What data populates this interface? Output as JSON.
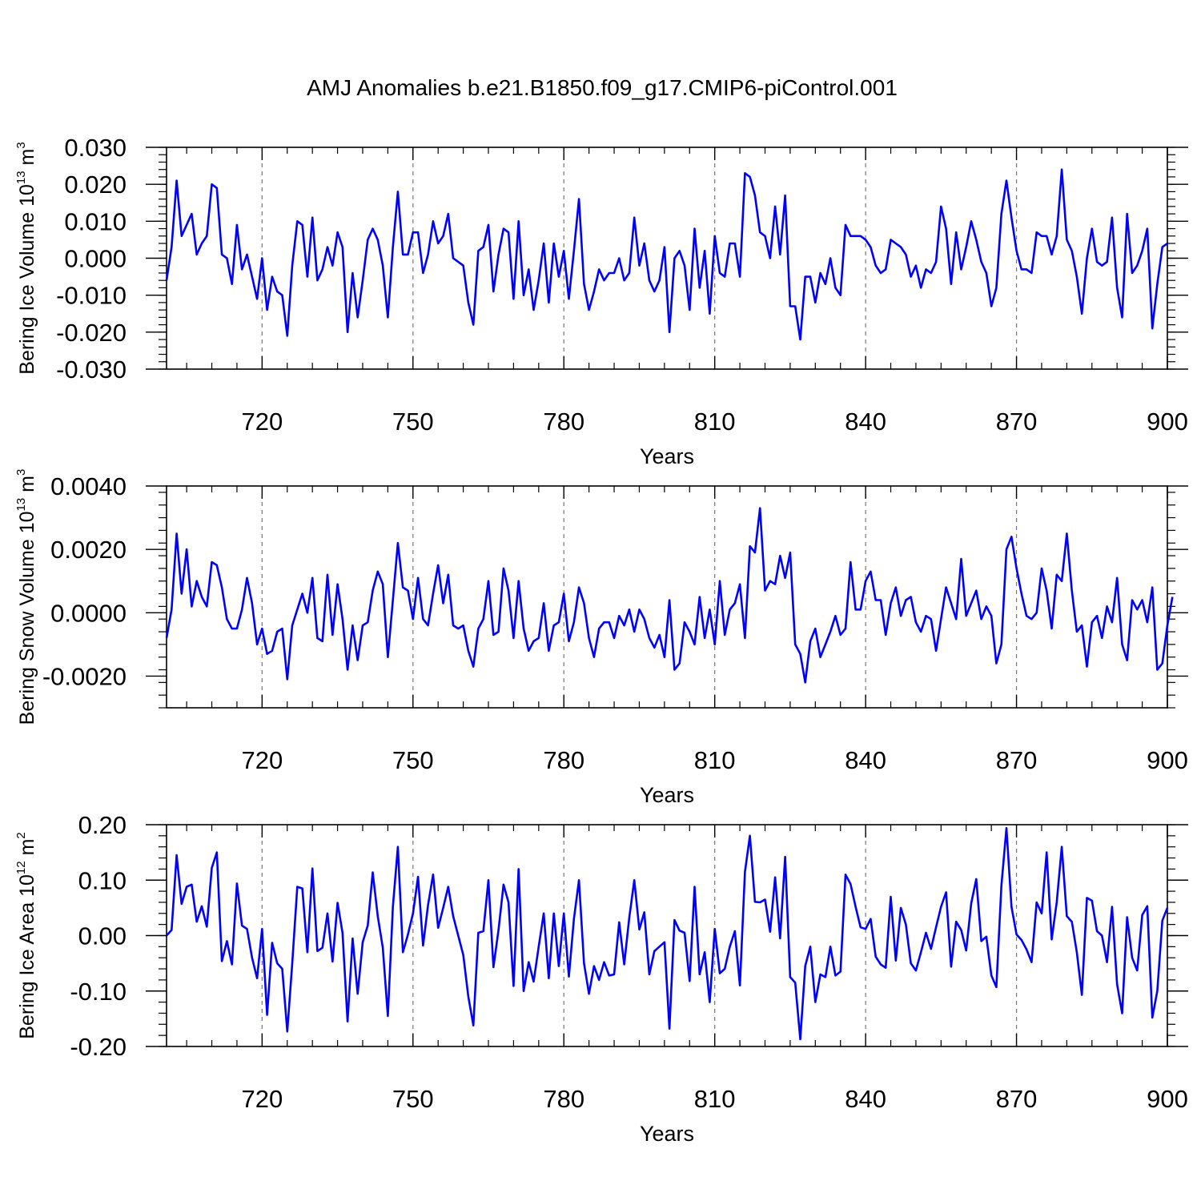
{
  "title": "AMJ Anomalies b.e21.B1850.f09_g17.CMIP6-piControl.001",
  "colors": {
    "line": "#0000ff",
    "axis": "#000000",
    "grid": "#777777"
  },
  "chart_data": [
    {
      "type": "line",
      "name": "ice-volume",
      "title": "AMJ Anomalies b.e21.B1850.f09_g17.CMIP6-piControl.001",
      "xlabel": "Years",
      "ylabel": {
        "text": "Bering Ice Volume 10",
        "sup": "13",
        "unit": " m",
        "unit_sup": "3"
      },
      "xlim": [
        701,
        900
      ],
      "ylim": [
        -0.03,
        0.03
      ],
      "xticks": [
        720,
        750,
        780,
        810,
        840,
        870,
        900
      ],
      "xticklabels": [
        "720",
        "750",
        "780",
        "810",
        "840",
        "870",
        "900"
      ],
      "yticks": [
        -0.03,
        -0.02,
        -0.01,
        0,
        0.01,
        0.02,
        0.03
      ],
      "yticklabels": [
        "-0.030",
        "-0.020",
        "-0.010",
        "0.000",
        "0.010",
        "0.020",
        "0.030"
      ],
      "grid_x": true,
      "x_start": 701,
      "values": [
        -0.006,
        0.003,
        0.021,
        0.006,
        0.009,
        0.012,
        0.001,
        0.004,
        0.006,
        0.02,
        0.019,
        0.001,
        0.0,
        -0.007,
        0.009,
        -0.003,
        0.001,
        -0.005,
        -0.011,
        0.0,
        -0.014,
        -0.005,
        -0.009,
        -0.01,
        -0.021,
        -0.002,
        0.01,
        0.009,
        -0.005,
        0.011,
        -0.006,
        -0.003,
        0.003,
        -0.002,
        0.007,
        0.003,
        -0.02,
        -0.004,
        -0.016,
        -0.006,
        0.005,
        0.008,
        0.005,
        -0.002,
        -0.016,
        0.003,
        0.018,
        0.001,
        0.001,
        0.007,
        0.007,
        -0.004,
        0.001,
        0.01,
        0.004,
        0.006,
        0.012,
        0.0,
        -0.001,
        -0.002,
        -0.012,
        -0.018,
        0.002,
        0.003,
        0.009,
        -0.009,
        0.001,
        0.008,
        0.007,
        -0.011,
        0.01,
        -0.01,
        -0.003,
        -0.014,
        -0.006,
        0.004,
        -0.012,
        0.004,
        -0.005,
        0.002,
        -0.011,
        0.002,
        0.016,
        -0.007,
        -0.014,
        -0.009,
        -0.003,
        -0.006,
        -0.004,
        -0.004,
        0.0,
        -0.006,
        -0.004,
        0.011,
        -0.002,
        0.004,
        -0.006,
        -0.009,
        -0.006,
        0.003,
        -0.02,
        0.0,
        0.002,
        -0.002,
        -0.014,
        0.008,
        -0.008,
        0.002,
        -0.015,
        0.006,
        -0.004,
        -0.005,
        0.004,
        0.004,
        -0.005,
        0.023,
        0.022,
        0.017,
        0.007,
        0.006,
        0.0,
        0.014,
        0.001,
        0.017,
        -0.013,
        -0.013,
        -0.022,
        -0.005,
        -0.005,
        -0.012,
        -0.004,
        -0.007,
        0.0,
        -0.008,
        -0.01,
        0.009,
        0.006,
        0.006,
        0.006,
        0.005,
        0.003,
        -0.002,
        -0.004,
        -0.003,
        0.005,
        0.004,
        0.003,
        0.001,
        -0.005,
        -0.002,
        -0.008,
        -0.003,
        -0.004,
        -0.001,
        0.014,
        0.008,
        -0.007,
        0.007,
        -0.003,
        0.003,
        0.01,
        0.005,
        -0.001,
        -0.004,
        -0.013,
        -0.008,
        0.012,
        0.021,
        0.011,
        0.002,
        -0.003,
        -0.003,
        -0.004,
        0.007,
        0.006,
        0.006,
        0.001,
        0.006,
        0.024,
        0.005,
        0.002,
        -0.005,
        -0.015,
        0.0,
        0.008,
        -0.001,
        -0.002,
        -0.001,
        0.011,
        -0.008,
        -0.016,
        0.012,
        -0.004,
        -0.002,
        0.002,
        0.008,
        -0.019,
        -0.007,
        0.003,
        0.004
      ]
    },
    {
      "type": "line",
      "name": "snow-volume",
      "xlabel": "Years",
      "ylabel": {
        "text": "Bering Snow Volume 10",
        "sup": "13",
        "unit": " m",
        "unit_sup": "3"
      },
      "xlim": [
        701,
        900
      ],
      "ylim": [
        -0.003,
        0.004
      ],
      "xticks": [
        720,
        750,
        780,
        810,
        840,
        870,
        900
      ],
      "xticklabels": [
        "720",
        "750",
        "780",
        "810",
        "840",
        "870",
        "900"
      ],
      "yticks": [
        -0.002,
        0,
        0.002,
        0.004
      ],
      "yticklabels": [
        "-0.0020",
        "0.0000",
        "0.0020",
        "0.0040"
      ],
      "grid_x": true,
      "x_start": 701,
      "values": [
        -0.0008,
        0.0001,
        0.0025,
        0.0006,
        0.002,
        0.0002,
        0.001,
        0.0005,
        0.0002,
        0.0016,
        0.0015,
        0.0008,
        -0.0002,
        -0.0005,
        -0.0005,
        0.0001,
        0.0011,
        0.0003,
        -0.001,
        -0.0005,
        -0.0013,
        -0.0012,
        -0.0006,
        -0.0005,
        -0.0021,
        -0.0004,
        0.0001,
        0.0006,
        0.0,
        0.0011,
        -0.0008,
        -0.0009,
        0.0012,
        -0.0007,
        0.0009,
        -0.0002,
        -0.0018,
        -0.0004,
        -0.0015,
        -0.0004,
        -0.0003,
        0.0007,
        0.0013,
        0.0009,
        -0.0014,
        0.0004,
        0.0022,
        0.0008,
        0.0007,
        -0.0002,
        0.0011,
        -0.0002,
        -0.0004,
        0.0006,
        0.0015,
        0.0003,
        0.0012,
        -0.0004,
        -0.0005,
        -0.0004,
        -0.0012,
        -0.0017,
        -0.0005,
        -0.0002,
        0.001,
        -0.0007,
        -0.0006,
        0.0014,
        0.0007,
        -0.0008,
        0.001,
        -0.0005,
        -0.0012,
        -0.0009,
        -0.0008,
        0.0003,
        -0.0012,
        -0.0004,
        -0.0003,
        0.0006,
        -0.0009,
        -0.0003,
        0.0008,
        0.0003,
        -0.0008,
        -0.0014,
        -0.0005,
        -0.0003,
        -0.0003,
        -0.0008,
        -0.0001,
        -0.0004,
        0.0001,
        -0.0006,
        0.0001,
        -0.0002,
        -0.0008,
        -0.0011,
        -0.0007,
        -0.0014,
        0.0004,
        -0.0018,
        -0.0016,
        -0.0003,
        -0.0006,
        -0.001,
        0.0005,
        -0.0008,
        0.0001,
        -0.001,
        0.001,
        -0.0007,
        0.0001,
        0.0003,
        0.0009,
        -0.0008,
        0.0021,
        0.0019,
        0.0033,
        0.0007,
        0.001,
        0.0009,
        0.0018,
        0.0011,
        0.0019,
        -0.001,
        -0.0013,
        -0.0022,
        -0.0009,
        -0.0005,
        -0.0014,
        -0.001,
        -0.0006,
        -0.0001,
        -0.0007,
        -0.0005,
        0.0016,
        0.0001,
        0.0001,
        0.001,
        0.0013,
        0.0004,
        0.0004,
        -0.0007,
        0.0003,
        0.0008,
        -0.0001,
        0.0004,
        0.0005,
        -0.0003,
        -0.0006,
        -0.0001,
        -0.0002,
        -0.0012,
        -0.0002,
        0.0008,
        0.0003,
        -0.0002,
        0.0017,
        -0.0001,
        0.0003,
        0.0007,
        -0.0002,
        0.0002,
        -0.0001,
        -0.0016,
        -0.001,
        0.002,
        0.0024,
        0.0014,
        0.0006,
        -0.0001,
        -0.0002,
        0.0,
        0.0014,
        0.0007,
        -0.0005,
        0.0012,
        0.001,
        0.0025,
        0.0007,
        -0.0006,
        -0.0004,
        -0.0017,
        -0.0003,
        -0.0001,
        -0.0008,
        0.0002,
        -0.0003,
        0.0011,
        -0.001,
        -0.0015,
        0.0004,
        0.0001,
        0.0004,
        -0.0003,
        0.0008,
        -0.0018,
        -0.0016,
        -0.0004,
        0.0005
      ]
    },
    {
      "type": "line",
      "name": "ice-area",
      "xlabel": "Years",
      "ylabel": {
        "text": "Bering Ice Area 10",
        "sup": "12",
        "unit": " m",
        "unit_sup": "2"
      },
      "xlim": [
        701,
        900
      ],
      "ylim": [
        -0.2,
        0.2
      ],
      "xticks": [
        720,
        750,
        780,
        810,
        840,
        870,
        900
      ],
      "xticklabels": [
        "720",
        "750",
        "780",
        "810",
        "840",
        "870",
        "900"
      ],
      "yticks": [
        -0.2,
        -0.1,
        0,
        0.1,
        0.2
      ],
      "yticklabels": [
        "-0.20",
        "-0.10",
        "0.00",
        "0.10",
        "0.20"
      ],
      "grid_x": true,
      "x_start": 701,
      "values": [
        0.0,
        0.01,
        0.145,
        0.057,
        0.088,
        0.092,
        0.025,
        0.053,
        0.016,
        0.122,
        0.15,
        -0.046,
        -0.01,
        -0.052,
        0.094,
        0.018,
        0.012,
        -0.04,
        -0.077,
        0.012,
        -0.143,
        -0.013,
        -0.05,
        -0.06,
        -0.173,
        -0.05,
        0.088,
        0.085,
        -0.03,
        0.121,
        -0.028,
        -0.022,
        0.04,
        -0.047,
        0.059,
        0.005,
        -0.155,
        -0.005,
        -0.105,
        -0.012,
        0.018,
        0.114,
        0.035,
        -0.022,
        -0.145,
        0.052,
        0.16,
        -0.03,
        0.002,
        0.04,
        0.106,
        -0.018,
        0.055,
        0.11,
        0.014,
        0.05,
        0.088,
        0.035,
        0.0,
        -0.035,
        -0.11,
        -0.162,
        0.005,
        0.008,
        0.1,
        -0.057,
        0.01,
        0.092,
        0.06,
        -0.091,
        0.12,
        -0.1,
        -0.048,
        -0.083,
        -0.02,
        0.04,
        -0.077,
        0.04,
        -0.055,
        0.04,
        -0.074,
        0.03,
        0.1,
        -0.05,
        -0.105,
        -0.055,
        -0.08,
        -0.048,
        -0.072,
        -0.07,
        0.024,
        -0.052,
        0.032,
        0.1,
        0.011,
        0.042,
        -0.07,
        -0.028,
        -0.02,
        -0.012,
        -0.168,
        0.028,
        0.009,
        0.005,
        -0.082,
        0.088,
        -0.07,
        -0.03,
        -0.12,
        0.012,
        -0.068,
        -0.06,
        -0.02,
        0.008,
        -0.09,
        0.115,
        0.18,
        0.061,
        0.06,
        0.065,
        0.007,
        0.105,
        -0.005,
        0.142,
        -0.075,
        -0.085,
        -0.187,
        -0.055,
        -0.02,
        -0.12,
        -0.07,
        -0.075,
        -0.02,
        -0.072,
        -0.065,
        0.11,
        0.093,
        0.052,
        0.015,
        0.012,
        0.03,
        -0.038,
        -0.052,
        -0.058,
        0.07,
        -0.045,
        0.05,
        0.02,
        -0.05,
        -0.063,
        -0.03,
        0.005,
        -0.024,
        0.015,
        0.052,
        0.078,
        -0.056,
        0.025,
        0.01,
        -0.027,
        0.058,
        0.102,
        -0.01,
        -0.002,
        -0.072,
        -0.093,
        0.09,
        0.194,
        0.052,
        0.002,
        -0.008,
        -0.025,
        -0.048,
        0.06,
        0.04,
        0.15,
        -0.007,
        0.06,
        0.16,
        0.035,
        0.025,
        -0.03,
        -0.107,
        0.068,
        0.063,
        0.008,
        0.0,
        -0.048,
        0.052,
        -0.088,
        -0.14,
        0.033,
        -0.04,
        -0.063,
        0.037,
        0.053,
        -0.148,
        -0.1,
        0.027,
        0.05
      ]
    }
  ]
}
